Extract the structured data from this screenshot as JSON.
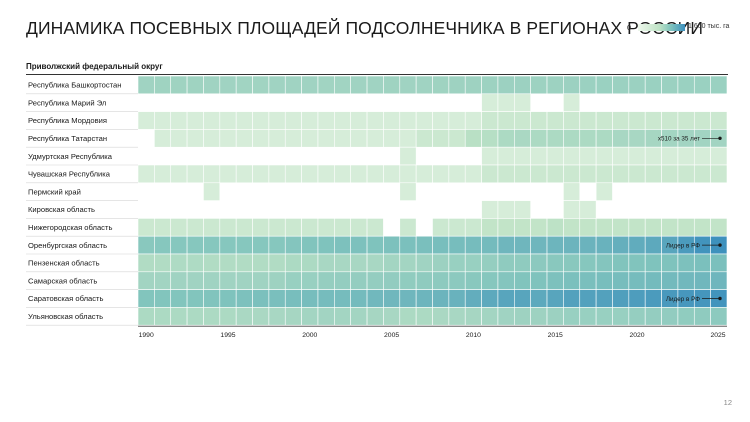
{
  "title": "ДИНАМИКА ПОСЕВНЫХ ПЛОЩАДЕЙ ПОДСОЛНЕЧНИКА В РЕГИОНАХ РОССИИ",
  "legend": {
    "min": "0",
    "max": "1 600 тыс. га"
  },
  "section_title": "Приволжский федеральный округ",
  "page_number": "12",
  "colors": {
    "min": "#eef7ec",
    "low": "#bfe3c6",
    "mid": "#7fc3bd",
    "max": "#3c8fbd"
  },
  "chart_data": {
    "type": "heatmap",
    "x_start": 1990,
    "x_end": 2025,
    "x_ticks": [
      "1990",
      "1995",
      "2000",
      "2005",
      "2010",
      "2015",
      "2020",
      "2025"
    ],
    "value_range": [
      0,
      1600
    ],
    "value_unit": "тыс. га",
    "rows": [
      {
        "label": "Республика Башкортостан",
        "values": [
          160,
          165,
          165,
          165,
          160,
          160,
          155,
          155,
          160,
          160,
          160,
          155,
          155,
          160,
          160,
          165,
          160,
          160,
          165,
          170,
          170,
          175,
          180,
          180,
          175,
          175,
          180,
          185,
          190,
          185,
          185,
          190,
          185,
          190,
          190,
          190
        ]
      },
      {
        "label": "Республика Марий Эл",
        "values": [
          0,
          0,
          0,
          0,
          0,
          0,
          0,
          0,
          0,
          0,
          0,
          0,
          0,
          0,
          0,
          0,
          0,
          0,
          0,
          0,
          0,
          10,
          10,
          10,
          0,
          0,
          10,
          0,
          0,
          0,
          0,
          0,
          0,
          0,
          0,
          0
        ]
      },
      {
        "label": "Республика Мордовия",
        "values": [
          10,
          10,
          10,
          10,
          10,
          10,
          10,
          10,
          10,
          10,
          10,
          10,
          10,
          10,
          10,
          10,
          10,
          10,
          10,
          10,
          10,
          20,
          20,
          20,
          20,
          20,
          20,
          20,
          20,
          20,
          20,
          20,
          20,
          20,
          20,
          20
        ]
      },
      {
        "label": "Республика Татарстан",
        "values": [
          0,
          10,
          10,
          10,
          10,
          10,
          10,
          10,
          10,
          10,
          10,
          10,
          10,
          10,
          10,
          10,
          10,
          20,
          20,
          20,
          50,
          60,
          100,
          110,
          100,
          100,
          100,
          100,
          100,
          120,
          120,
          130,
          140,
          150,
          150,
          150
        ]
      },
      {
        "label": "Удмуртская Республика",
        "values": [
          0,
          0,
          0,
          0,
          0,
          0,
          0,
          0,
          0,
          0,
          0,
          0,
          0,
          0,
          0,
          0,
          10,
          0,
          0,
          0,
          0,
          10,
          10,
          10,
          10,
          10,
          10,
          10,
          10,
          10,
          10,
          10,
          10,
          10,
          10,
          10
        ]
      },
      {
        "label": "Чувашская Республика",
        "values": [
          10,
          10,
          10,
          10,
          10,
          10,
          10,
          10,
          10,
          10,
          10,
          10,
          10,
          10,
          10,
          10,
          10,
          10,
          10,
          10,
          10,
          20,
          20,
          20,
          20,
          20,
          20,
          20,
          20,
          20,
          20,
          20,
          20,
          20,
          20,
          20
        ]
      },
      {
        "label": "Пермский край",
        "values": [
          0,
          0,
          0,
          0,
          10,
          0,
          0,
          0,
          0,
          0,
          0,
          0,
          0,
          0,
          0,
          0,
          10,
          0,
          0,
          0,
          0,
          0,
          0,
          0,
          0,
          0,
          10,
          0,
          10,
          0,
          0,
          0,
          0,
          0,
          0,
          0
        ]
      },
      {
        "label": "Кировская область",
        "values": [
          0,
          0,
          0,
          0,
          0,
          0,
          0,
          0,
          0,
          0,
          0,
          0,
          0,
          0,
          0,
          0,
          0,
          0,
          0,
          0,
          0,
          10,
          10,
          10,
          0,
          0,
          10,
          10,
          0,
          0,
          0,
          0,
          0,
          0,
          0,
          0
        ]
      },
      {
        "label": "Нижегородская область",
        "values": [
          20,
          20,
          20,
          20,
          20,
          20,
          20,
          20,
          20,
          20,
          20,
          20,
          20,
          20,
          20,
          0,
          20,
          0,
          20,
          20,
          20,
          30,
          30,
          30,
          30,
          40,
          30,
          30,
          30,
          30,
          30,
          30,
          30,
          30,
          30,
          30
        ]
      },
      {
        "label": "Оренбургская область",
        "values": [
          300,
          320,
          320,
          320,
          320,
          320,
          320,
          320,
          320,
          340,
          360,
          380,
          400,
          400,
          380,
          400,
          420,
          440,
          460,
          480,
          500,
          520,
          600,
          600,
          600,
          620,
          640,
          660,
          700,
          760,
          820,
          900,
          1000,
          1250,
          1450,
          1550
        ]
      },
      {
        "label": "Пензенская область",
        "values": [
          80,
          80,
          90,
          90,
          80,
          80,
          80,
          80,
          80,
          100,
          100,
          120,
          120,
          120,
          120,
          140,
          140,
          160,
          180,
          200,
          200,
          220,
          260,
          260,
          280,
          300,
          300,
          320,
          340,
          360,
          360,
          380,
          380,
          400,
          420,
          420
        ]
      },
      {
        "label": "Самарская область",
        "values": [
          150,
          150,
          160,
          160,
          160,
          160,
          160,
          160,
          170,
          200,
          200,
          220,
          230,
          230,
          230,
          240,
          250,
          260,
          270,
          280,
          300,
          320,
          340,
          360,
          380,
          400,
          420,
          440,
          460,
          480,
          500,
          520,
          540,
          560,
          580,
          600
        ]
      },
      {
        "label": "Саратовская область",
        "values": [
          350,
          350,
          350,
          350,
          360,
          380,
          400,
          420,
          440,
          460,
          480,
          500,
          500,
          520,
          560,
          580,
          600,
          620,
          640,
          700,
          800,
          900,
          1000,
          1000,
          900,
          1000,
          1100,
          1100,
          1100,
          1150,
          1200,
          1250,
          1300,
          1350,
          1400,
          1450
        ]
      },
      {
        "label": "Ульяновская область",
        "values": [
          100,
          100,
          100,
          100,
          100,
          100,
          110,
          110,
          120,
          130,
          140,
          150,
          140,
          140,
          130,
          120,
          100,
          100,
          110,
          120,
          130,
          140,
          160,
          170,
          170,
          180,
          200,
          200,
          200,
          200,
          220,
          230,
          240,
          250,
          260,
          270
        ]
      }
    ],
    "annotations": [
      {
        "row": "Республика Татарстан",
        "text": "x510 за 35 лет"
      },
      {
        "row": "Оренбургская область",
        "text": "Лидер в РФ"
      },
      {
        "row": "Саратовская область",
        "text": "Лидер в РФ"
      }
    ]
  }
}
